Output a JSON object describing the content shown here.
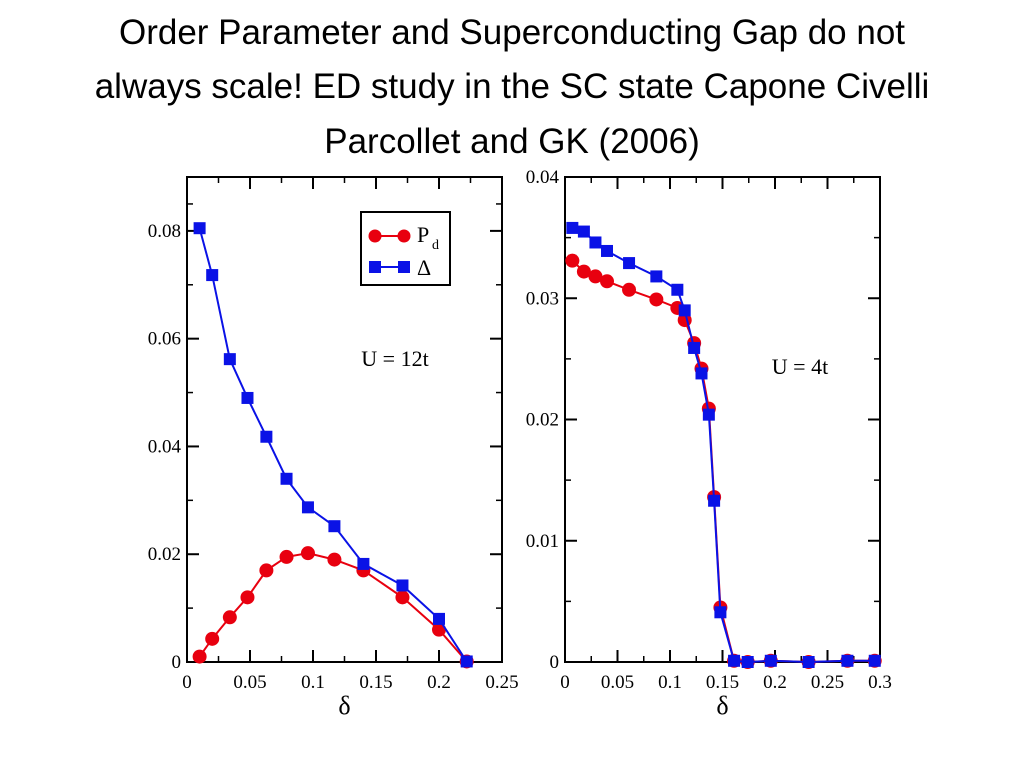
{
  "slide": {
    "title_lines": [
      "Order Parameter and Superconducting Gap  do not",
      "always scale! ED study in the SC state Capone Civelli",
      "Parcollet and GK (2006)"
    ]
  },
  "colors": {
    "pd": "#e8000f",
    "delta": "#0a12e6",
    "axis": "#000000"
  },
  "chart_data": [
    {
      "type": "line",
      "xlabel": "δ",
      "ylabel": "",
      "xlim": [
        0,
        0.25
      ],
      "ylim": [
        0,
        0.09
      ],
      "xticks": [
        0,
        0.05,
        0.1,
        0.15,
        0.2,
        0.25
      ],
      "xtick_labels": [
        "0",
        "0.05",
        "0.1",
        "0.15",
        "0.2",
        "0.25"
      ],
      "yticks": [
        0,
        0.02,
        0.04,
        0.06,
        0.08
      ],
      "ytick_labels": [
        "0",
        "0.02",
        "0.04",
        "0.06",
        "0.08"
      ],
      "annotation": "U = 12t",
      "legend": {
        "placement": "top-right",
        "entries": [
          "P",
          "Δ"
        ],
        "pd_subscript": "d"
      },
      "series": [
        {
          "name": "Pd",
          "marker": "circle",
          "x": [
            0.01,
            0.02,
            0.034,
            0.048,
            0.063,
            0.079,
            0.096,
            0.117,
            0.14,
            0.171,
            0.2,
            0.222
          ],
          "y": [
            0.001,
            0.0043,
            0.0083,
            0.012,
            0.017,
            0.0195,
            0.0202,
            0.019,
            0.017,
            0.012,
            0.006,
            0.0001
          ]
        },
        {
          "name": "Δ",
          "marker": "square",
          "x": [
            0.01,
            0.02,
            0.034,
            0.048,
            0.063,
            0.079,
            0.096,
            0.117,
            0.14,
            0.171,
            0.2,
            0.222
          ],
          "y": [
            0.0805,
            0.0718,
            0.0562,
            0.049,
            0.0418,
            0.034,
            0.0287,
            0.0252,
            0.0182,
            0.0142,
            0.008,
            0.0001
          ]
        }
      ]
    },
    {
      "type": "line",
      "xlabel": "δ",
      "ylabel": "",
      "xlim": [
        0,
        0.3
      ],
      "ylim": [
        0,
        0.04
      ],
      "xticks": [
        0,
        0.05,
        0.1,
        0.15,
        0.2,
        0.25,
        0.3
      ],
      "xtick_labels": [
        "0",
        "0.05",
        "0.1",
        "0.15",
        "0.2",
        "0.25",
        "0.3"
      ],
      "yticks": [
        0,
        0.01,
        0.02,
        0.03,
        0.04
      ],
      "ytick_labels": [
        "0",
        "0.01",
        "0.02",
        "0.03",
        "0.04"
      ],
      "annotation": "U = 4t",
      "series": [
        {
          "name": "Pd",
          "marker": "circle",
          "x": [
            0.007,
            0.018,
            0.029,
            0.04,
            0.061,
            0.087,
            0.107,
            0.114,
            0.123,
            0.13,
            0.137,
            0.142,
            0.148,
            0.161,
            0.174,
            0.196,
            0.232,
            0.269,
            0.295
          ],
          "y": [
            0.0331,
            0.0322,
            0.0318,
            0.0314,
            0.0307,
            0.0299,
            0.0292,
            0.0282,
            0.0263,
            0.0242,
            0.0209,
            0.0136,
            0.0045,
            0.0001,
            0.0,
            0.0001,
            0.0,
            0.0001,
            0.0001
          ]
        },
        {
          "name": "Δ",
          "marker": "square",
          "x": [
            0.007,
            0.018,
            0.029,
            0.04,
            0.061,
            0.087,
            0.107,
            0.114,
            0.123,
            0.13,
            0.137,
            0.142,
            0.148,
            0.161,
            0.174,
            0.196,
            0.232,
            0.269,
            0.295
          ],
          "y": [
            0.0358,
            0.0355,
            0.0346,
            0.0339,
            0.0329,
            0.0318,
            0.0307,
            0.029,
            0.0259,
            0.0238,
            0.0204,
            0.0133,
            0.0041,
            0.0001,
            0.0,
            0.0001,
            0.0,
            0.0001,
            0.0001
          ]
        }
      ]
    }
  ]
}
